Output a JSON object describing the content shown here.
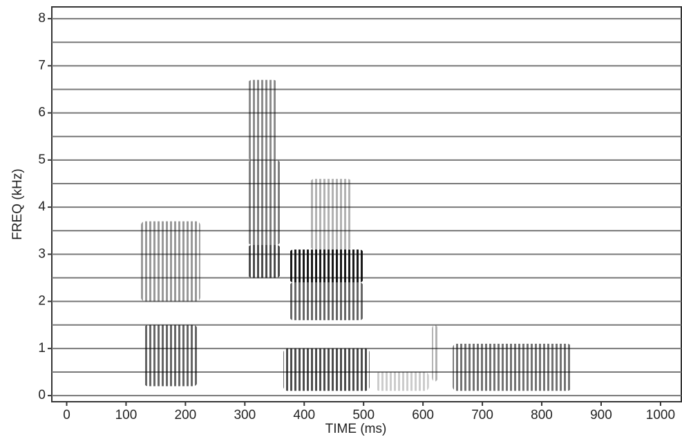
{
  "chart_data": {
    "type": "spectrogram",
    "xlabel": "TIME  (ms)",
    "ylabel": "FREQ  (kHz)",
    "xlim": [
      -25,
      1035
    ],
    "ylim": [
      -0.13,
      8.25
    ],
    "xticks": [
      0,
      100,
      200,
      300,
      400,
      500,
      600,
      700,
      800,
      900,
      1000
    ],
    "yticks": [
      0,
      1,
      2,
      3,
      4,
      5,
      6,
      7,
      8
    ],
    "grid": [
      0,
      0.5,
      1,
      1.5,
      2,
      2.5,
      3,
      3.5,
      4,
      4.5,
      5,
      5.5,
      6,
      6.5,
      7,
      7.5,
      8
    ],
    "color": "#222222",
    "regions": [
      {
        "x": [
          130,
          220
        ],
        "y": [
          0.2,
          1.5
        ],
        "level": 0.6
      },
      {
        "x": [
          125,
          225
        ],
        "y": [
          2.0,
          3.7
        ],
        "level": 0.4
      },
      {
        "x": [
          305,
          360
        ],
        "y": [
          3.2,
          5.0
        ],
        "level": 0.5
      },
      {
        "x": [
          305,
          355
        ],
        "y": [
          5.0,
          6.7
        ],
        "level": 0.45
      },
      {
        "x": [
          305,
          360
        ],
        "y": [
          2.5,
          3.2
        ],
        "level": 0.7
      },
      {
        "x": [
          365,
          510
        ],
        "y": [
          0.1,
          1.0
        ],
        "level": 0.7
      },
      {
        "x": [
          375,
          500
        ],
        "y": [
          1.6,
          2.4
        ],
        "level": 0.6
      },
      {
        "x": [
          375,
          500
        ],
        "y": [
          2.4,
          3.1
        ],
        "level": 0.9
      },
      {
        "x": [
          410,
          480
        ],
        "y": [
          3.1,
          4.6
        ],
        "level": 0.3
      },
      {
        "x": [
          520,
          610
        ],
        "y": [
          0.1,
          0.5
        ],
        "level": 0.2
      },
      {
        "x": [
          615,
          625
        ],
        "y": [
          0.3,
          1.5
        ],
        "level": 0.3
      },
      {
        "x": [
          650,
          850
        ],
        "y": [
          0.1,
          1.1
        ],
        "level": 0.55
      }
    ]
  }
}
